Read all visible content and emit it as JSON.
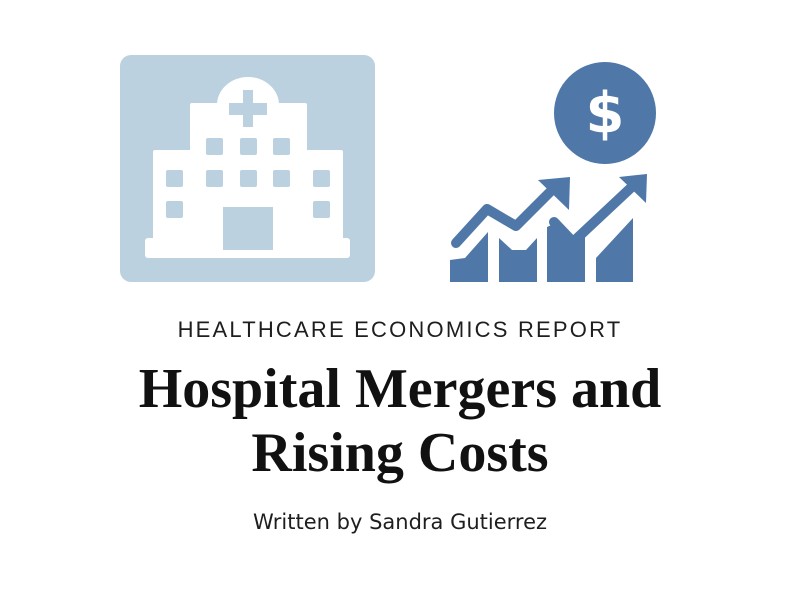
{
  "cover": {
    "kicker": "HEALTHCARE ECONOMICS REPORT",
    "title_line1": "Hospital Mergers and",
    "title_line2": "Rising Costs",
    "author": "Written by Sandra Gutierrez"
  },
  "icons": {
    "left": "hospital-building-icon",
    "right": "rising-cost-chart-icon"
  },
  "colors": {
    "hospital_bg": "#bcd1e0",
    "chart_blue": "#4f77a8",
    "text": "#111111"
  }
}
